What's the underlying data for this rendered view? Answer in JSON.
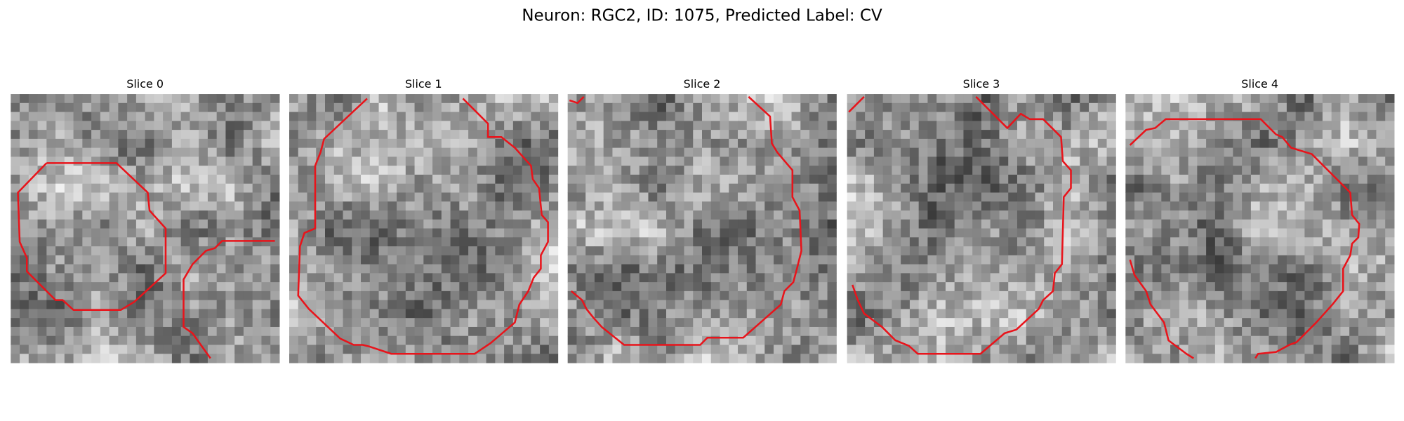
{
  "title": "Neuron: RGC2, ID: 1075, Predicted Label: CV",
  "panels": [
    {
      "title": "Slice 0"
    },
    {
      "title": "Slice 1"
    },
    {
      "title": "Slice 2"
    },
    {
      "title": "Slice 3"
    },
    {
      "title": "Slice 4"
    }
  ]
}
